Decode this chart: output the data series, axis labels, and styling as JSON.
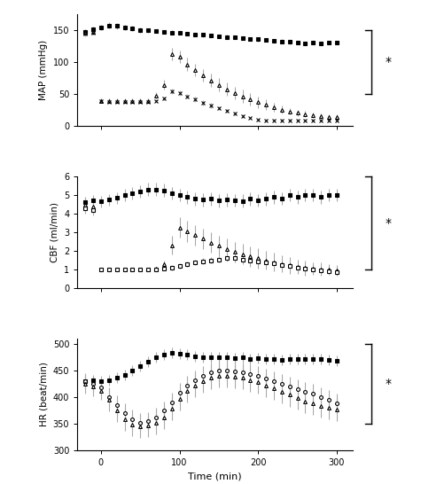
{
  "panels": [
    {
      "ylabel": "MAP (mmHg)",
      "ylim": [
        0,
        175
      ],
      "yticks": [
        0,
        50,
        100,
        150
      ],
      "series": [
        {
          "x": [
            -20,
            -10,
            0,
            10,
            20,
            30,
            40,
            50,
            60,
            70,
            80,
            90,
            100,
            110,
            120,
            130,
            140,
            150,
            160,
            170,
            180,
            190,
            200,
            210,
            220,
            230,
            240,
            250,
            260,
            270,
            280,
            290,
            300
          ],
          "y": [
            148,
            152,
            155,
            158,
            157,
            155,
            153,
            151,
            150,
            149,
            148,
            147,
            146,
            145,
            144,
            143,
            142,
            141,
            140,
            139,
            138,
            137,
            136,
            135,
            134,
            133,
            132,
            131,
            130,
            131,
            130,
            131,
            131
          ],
          "yerr": [
            4,
            4,
            4,
            5,
            5,
            4,
            4,
            4,
            3,
            3,
            3,
            3,
            3,
            3,
            3,
            3,
            3,
            3,
            3,
            3,
            3,
            3,
            3,
            3,
            3,
            3,
            3,
            3,
            3,
            3,
            3,
            3,
            3
          ],
          "marker": "s",
          "fillstyle": "full"
        },
        {
          "x": [
            -20,
            -10,
            0,
            10,
            20,
            30,
            40,
            50,
            60,
            70,
            80,
            90,
            100,
            110,
            120,
            130,
            140,
            150,
            160,
            170,
            180,
            190,
            200,
            210,
            220,
            230,
            240,
            250,
            260,
            270,
            280,
            290,
            300
          ],
          "y": [
            147,
            148,
            40,
            40,
            40,
            40,
            40,
            40,
            40,
            48,
            65,
            113,
            109,
            97,
            88,
            80,
            72,
            65,
            58,
            52,
            47,
            42,
            38,
            34,
            30,
            26,
            23,
            21,
            19,
            17,
            16,
            15,
            14
          ],
          "yerr": [
            5,
            5,
            3,
            3,
            3,
            3,
            3,
            3,
            3,
            5,
            8,
            10,
            10,
            10,
            10,
            10,
            10,
            10,
            10,
            10,
            10,
            10,
            9,
            8,
            7,
            6,
            5,
            5,
            5,
            4,
            4,
            4,
            4
          ],
          "marker": "^",
          "fillstyle": "none"
        },
        {
          "x": [
            -20,
            -10,
            0,
            10,
            20,
            30,
            40,
            50,
            60,
            70,
            80,
            90,
            100,
            110,
            120,
            130,
            140,
            150,
            160,
            170,
            180,
            190,
            200,
            210,
            220,
            230,
            240,
            250,
            260,
            270,
            280,
            290,
            300
          ],
          "y": [
            145,
            147,
            40,
            38,
            38,
            38,
            38,
            38,
            38,
            40,
            44,
            55,
            52,
            47,
            42,
            37,
            32,
            28,
            24,
            20,
            16,
            13,
            10,
            9,
            9,
            9,
            9,
            9,
            9,
            9,
            9,
            9,
            9
          ],
          "yerr": [
            4,
            4,
            3,
            2,
            2,
            2,
            2,
            2,
            2,
            2,
            3,
            4,
            4,
            4,
            4,
            4,
            4,
            3,
            3,
            3,
            3,
            2,
            2,
            2,
            2,
            2,
            2,
            2,
            2,
            2,
            2,
            2,
            2
          ],
          "marker": "x",
          "fillstyle": "none"
        }
      ]
    },
    {
      "ylabel": "CBF (ml/min)",
      "ylim": [
        0,
        6
      ],
      "yticks": [
        0,
        1,
        2,
        3,
        4,
        5,
        6
      ],
      "series": [
        {
          "x": [
            -20,
            -10,
            0,
            10,
            20,
            30,
            40,
            50,
            60,
            70,
            80,
            90,
            100,
            110,
            120,
            130,
            140,
            150,
            160,
            170,
            180,
            190,
            200,
            210,
            220,
            230,
            240,
            250,
            260,
            270,
            280,
            290,
            300
          ],
          "y": [
            4.6,
            4.7,
            4.65,
            4.75,
            4.85,
            5.0,
            5.1,
            5.2,
            5.3,
            5.3,
            5.25,
            5.1,
            5.0,
            4.9,
            4.8,
            4.75,
            4.8,
            4.7,
            4.75,
            4.72,
            4.68,
            4.8,
            4.72,
            4.8,
            4.9,
            4.82,
            5.0,
            4.9,
            5.0,
            5.0,
            4.9,
            5.0,
            5.0
          ],
          "yerr": [
            0.3,
            0.3,
            0.3,
            0.3,
            0.3,
            0.35,
            0.35,
            0.35,
            0.35,
            0.35,
            0.35,
            0.35,
            0.35,
            0.35,
            0.35,
            0.35,
            0.35,
            0.35,
            0.35,
            0.35,
            0.35,
            0.35,
            0.35,
            0.35,
            0.35,
            0.35,
            0.35,
            0.35,
            0.35,
            0.35,
            0.35,
            0.35,
            0.35
          ],
          "marker": "s",
          "fillstyle": "full"
        },
        {
          "x": [
            -20,
            -10,
            0,
            10,
            20,
            30,
            40,
            50,
            60,
            70,
            80,
            90,
            100,
            110,
            120,
            130,
            140,
            150,
            160,
            170,
            180,
            190,
            200,
            210,
            220,
            230,
            240,
            250,
            260,
            270,
            280,
            290,
            300
          ],
          "y": [
            4.5,
            4.4,
            1.0,
            1.0,
            1.0,
            1.0,
            1.0,
            1.0,
            1.0,
            1.05,
            1.3,
            2.3,
            3.25,
            3.05,
            2.85,
            2.65,
            2.45,
            2.28,
            2.1,
            1.95,
            1.82,
            1.7,
            1.6,
            1.5,
            1.4,
            1.3,
            1.22,
            1.15,
            1.08,
            1.05,
            1.02,
            1.0,
            0.95
          ],
          "yerr": [
            0.35,
            0.35,
            0.1,
            0.1,
            0.1,
            0.1,
            0.1,
            0.1,
            0.1,
            0.1,
            0.2,
            0.5,
            0.55,
            0.55,
            0.55,
            0.55,
            0.55,
            0.55,
            0.55,
            0.55,
            0.55,
            0.55,
            0.55,
            0.5,
            0.5,
            0.45,
            0.45,
            0.4,
            0.4,
            0.35,
            0.35,
            0.3,
            0.3
          ],
          "marker": "^",
          "fillstyle": "none"
        },
        {
          "x": [
            -20,
            -10,
            0,
            10,
            20,
            30,
            40,
            50,
            60,
            70,
            80,
            90,
            100,
            110,
            120,
            130,
            140,
            150,
            160,
            170,
            180,
            190,
            200,
            210,
            220,
            230,
            240,
            250,
            260,
            270,
            280,
            290,
            300
          ],
          "y": [
            4.3,
            4.2,
            1.0,
            1.0,
            1.0,
            1.0,
            1.0,
            1.0,
            1.0,
            1.0,
            1.05,
            1.1,
            1.2,
            1.3,
            1.4,
            1.45,
            1.5,
            1.55,
            1.6,
            1.6,
            1.55,
            1.5,
            1.45,
            1.4,
            1.35,
            1.25,
            1.18,
            1.12,
            1.05,
            1.0,
            0.95,
            0.9,
            0.85
          ],
          "yerr": [
            0.3,
            0.3,
            0.1,
            0.1,
            0.1,
            0.1,
            0.1,
            0.1,
            0.1,
            0.1,
            0.1,
            0.12,
            0.15,
            0.15,
            0.15,
            0.15,
            0.15,
            0.15,
            0.15,
            0.15,
            0.15,
            0.15,
            0.15,
            0.15,
            0.15,
            0.15,
            0.15,
            0.15,
            0.15,
            0.15,
            0.15,
            0.15,
            0.15
          ],
          "marker": "s",
          "fillstyle": "none"
        }
      ]
    },
    {
      "ylabel": "HR (beat/min)",
      "ylim": [
        300,
        510
      ],
      "yticks": [
        300,
        350,
        400,
        450,
        500
      ],
      "series": [
        {
          "x": [
            -20,
            -10,
            0,
            10,
            20,
            30,
            40,
            50,
            60,
            70,
            80,
            90,
            100,
            110,
            120,
            130,
            140,
            150,
            160,
            170,
            180,
            190,
            200,
            210,
            220,
            230,
            240,
            250,
            260,
            270,
            280,
            290,
            300
          ],
          "y": [
            430,
            432,
            430,
            432,
            436,
            442,
            450,
            458,
            466,
            474,
            480,
            483,
            481,
            479,
            477,
            475,
            474,
            474,
            474,
            473,
            474,
            472,
            473,
            472,
            471,
            470,
            472,
            471,
            472,
            471,
            471,
            470,
            468
          ],
          "yerr": [
            10,
            10,
            10,
            10,
            10,
            10,
            10,
            10,
            10,
            10,
            10,
            10,
            10,
            10,
            10,
            10,
            10,
            10,
            10,
            10,
            10,
            10,
            10,
            10,
            10,
            10,
            10,
            10,
            10,
            10,
            10,
            10,
            10
          ],
          "marker": "s",
          "fillstyle": "full"
        },
        {
          "x": [
            -20,
            -10,
            0,
            10,
            20,
            30,
            40,
            50,
            60,
            70,
            80,
            90,
            100,
            110,
            120,
            130,
            140,
            150,
            160,
            170,
            180,
            190,
            200,
            210,
            220,
            230,
            240,
            250,
            260,
            270,
            280,
            290,
            300
          ],
          "y": [
            430,
            425,
            418,
            400,
            385,
            370,
            358,
            352,
            354,
            362,
            374,
            390,
            408,
            422,
            432,
            440,
            447,
            450,
            450,
            448,
            446,
            443,
            440,
            435,
            430,
            425,
            420,
            415,
            410,
            406,
            400,
            395,
            388
          ],
          "yerr": [
            15,
            15,
            15,
            18,
            18,
            18,
            18,
            18,
            18,
            18,
            18,
            18,
            18,
            18,
            18,
            18,
            18,
            18,
            18,
            18,
            18,
            18,
            18,
            18,
            18,
            18,
            18,
            18,
            18,
            18,
            18,
            18,
            18
          ],
          "marker": "o",
          "fillstyle": "none"
        },
        {
          "x": [
            -20,
            -10,
            0,
            10,
            20,
            30,
            40,
            50,
            60,
            70,
            80,
            90,
            100,
            110,
            120,
            130,
            140,
            150,
            160,
            170,
            180,
            190,
            200,
            210,
            220,
            230,
            240,
            250,
            260,
            270,
            280,
            290,
            300
          ],
          "y": [
            425,
            420,
            412,
            395,
            375,
            358,
            348,
            345,
            346,
            352,
            362,
            378,
            396,
            412,
            422,
            430,
            436,
            440,
            440,
            438,
            436,
            432,
            428,
            422,
            416,
            410,
            404,
            398,
            392,
            388,
            383,
            380,
            376
          ],
          "yerr": [
            18,
            18,
            18,
            22,
            22,
            22,
            22,
            22,
            22,
            22,
            22,
            22,
            22,
            22,
            22,
            22,
            22,
            22,
            22,
            22,
            22,
            22,
            22,
            22,
            22,
            22,
            22,
            22,
            22,
            22,
            22,
            22,
            22
          ],
          "marker": "^",
          "fillstyle": "none"
        }
      ]
    }
  ],
  "xlabel": "Time (min)",
  "xticks": [
    0,
    100,
    200,
    300
  ],
  "xlim": [
    -30,
    320
  ],
  "bracket_star": "*",
  "background_color": "#ffffff",
  "ecolor": "#aaaaaa",
  "marker_size": 2.8,
  "line_width": 0.9,
  "elinewidth": 0.8
}
